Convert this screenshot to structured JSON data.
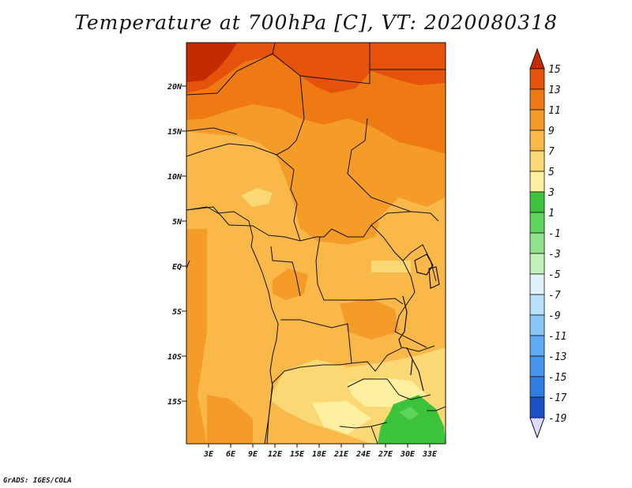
{
  "title": "Temperature at 700hPa [C], VT: 2020080318",
  "credit": "GrADS: IGES/COLA",
  "colors": {
    "c_m19": "#11126b",
    "c_m17": "#1334a8",
    "c_m15": "#1a52c6",
    "c_m13": "#2268d6",
    "c_m11": "#2f7ee2",
    "c_m9": "#4495ec",
    "c_m7": "#5eaaf3",
    "c_m5": "#88c6f8",
    "c_m3": "#b6e0fb",
    "c_m1": "#dff3fd",
    "c_1": "#c2f2b8",
    "c_3": "#8fe58a",
    "c_5": "#5dd45d",
    "c_7": "#3cc33c",
    "c_9": "#fff0a0",
    "c_11": "#fbd873",
    "c_13": "#f9b848",
    "c_15": "#f59b28",
    "c_17": "#ef7a14",
    "c_19": "#e5520a",
    "c_21": "#c62a00",
    "overflow_low": "#dcdcff"
  },
  "map": {
    "lat_labels": [
      "20N",
      "15N",
      "10N",
      "5N",
      "EQ",
      "5S",
      "10S",
      "15S"
    ],
    "lon_labels": [
      "3E",
      "6E",
      "9E",
      "12E",
      "15E",
      "18E",
      "21E",
      "24E",
      "27E",
      "30E",
      "33E"
    ]
  },
  "colorbar": {
    "labels": [
      "15",
      "13",
      "11",
      "9",
      "7",
      "5",
      "3",
      "1",
      "-1",
      "-3",
      "-5",
      "-7",
      "-9",
      "-11",
      "-13",
      "-15",
      "-17",
      "-19"
    ]
  }
}
